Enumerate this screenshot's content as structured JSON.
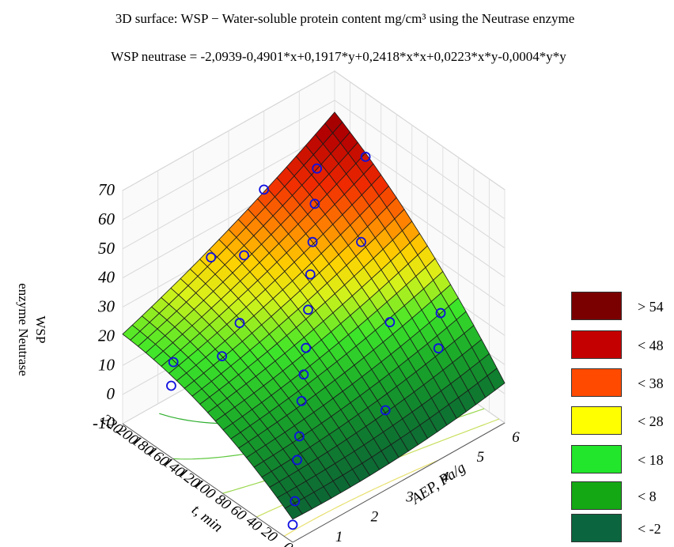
{
  "chart_data": {
    "type": "surface",
    "title": "3D surface: WSP − Water-soluble protein content mg/cm³ using the Neutrase enzyme",
    "equation": "WSP neutrase = -2,0939-0,4901*x+0,1917*y+0,2418*x*x+0,0223*x*y-0,0004*y*y",
    "xlabel": "AEP, Pa/g",
    "ylabel": "t, min",
    "zlabel_line1": "WSP",
    "zlabel_line2": "enzyme Neutrase",
    "xlim": [
      0,
      6
    ],
    "ylim": [
      0,
      220
    ],
    "zlim": [
      -10,
      70
    ],
    "x_ticks": [
      "0",
      "1",
      "2",
      "3",
      "4",
      "5",
      "6"
    ],
    "y_ticks": [
      "0",
      "20",
      "40",
      "60",
      "80",
      "100",
      "120",
      "140",
      "160",
      "180",
      "200",
      "220"
    ],
    "z_ticks": [
      "-10",
      "0",
      "10",
      "20",
      "30",
      "40",
      "50",
      "60",
      "70"
    ],
    "coefficients": {
      "c0": -2.0939,
      "cx": -0.4901,
      "cy": 0.1917,
      "cxx": 0.2418,
      "cxy": 0.0223,
      "cyy": -0.0004
    },
    "legend": [
      {
        "label": "> 54",
        "color": "#7a0000"
      },
      {
        "label": "< 48",
        "color": "#c40000"
      },
      {
        "label": "< 38",
        "color": "#ff4a00"
      },
      {
        "label": "< 28",
        "color": "#ffff00"
      },
      {
        "label": "< 18",
        "color": "#22e62b"
      },
      {
        "label": "< 8",
        "color": "#15a815"
      },
      {
        "label": "< -2",
        "color": "#0b6640"
      }
    ],
    "points": [
      {
        "x": 0,
        "y": 0,
        "z": -4
      },
      {
        "x": 0.5,
        "y": 20,
        "z": -3
      },
      {
        "x": 1,
        "y": 40,
        "z": 4
      },
      {
        "x": 1.5,
        "y": 60,
        "z": 5
      },
      {
        "x": 2,
        "y": 80,
        "z": 10
      },
      {
        "x": 2.5,
        "y": 100,
        "z": 12
      },
      {
        "x": 3,
        "y": 120,
        "z": 14
      },
      {
        "x": 3.5,
        "y": 140,
        "z": 20
      },
      {
        "x": 4,
        "y": 160,
        "z": 25
      },
      {
        "x": 4.5,
        "y": 180,
        "z": 29
      },
      {
        "x": 5,
        "y": 200,
        "z": 35
      },
      {
        "x": 5.5,
        "y": 220,
        "z": 40
      },
      {
        "x": 1,
        "y": 200,
        "z": 8
      },
      {
        "x": 0.5,
        "y": 180,
        "z": 7
      },
      {
        "x": 1.5,
        "y": 160,
        "z": 14
      },
      {
        "x": 5,
        "y": 40,
        "z": 15
      },
      {
        "x": 5.5,
        "y": 60,
        "z": 20
      },
      {
        "x": 4.5,
        "y": 80,
        "z": 20
      },
      {
        "x": 3,
        "y": 200,
        "z": 31
      },
      {
        "x": 2,
        "y": 160,
        "z": 22
      },
      {
        "x": 4,
        "y": 220,
        "z": 43
      },
      {
        "x": 2.5,
        "y": 220,
        "z": 30
      },
      {
        "x": 5,
        "y": 140,
        "z": 33
      },
      {
        "x": 6,
        "y": 180,
        "z": 48
      },
      {
        "x": 3.5,
        "y": 40,
        "z": 4
      }
    ]
  }
}
